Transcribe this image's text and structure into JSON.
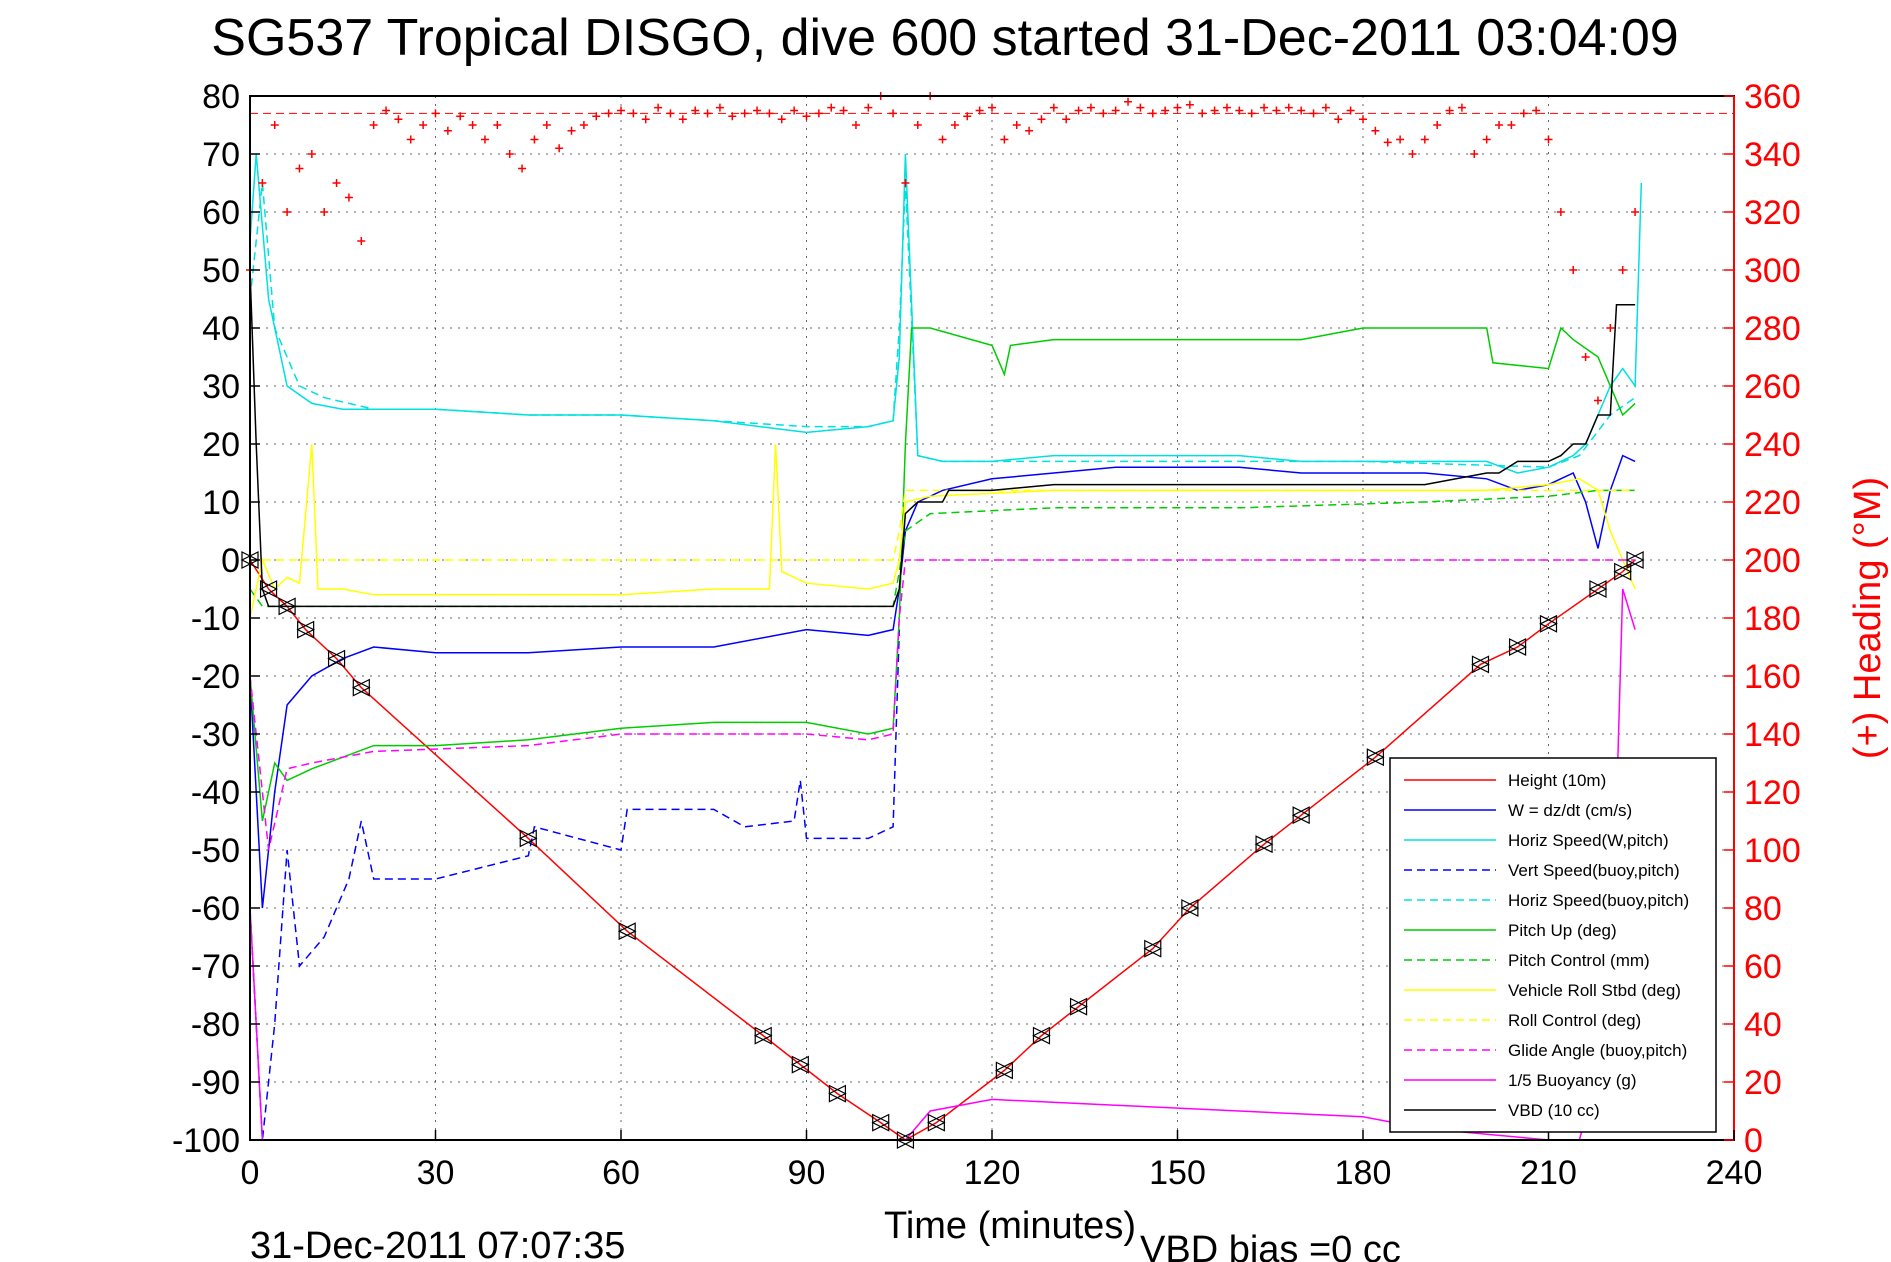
{
  "chart_data": {
    "type": "line",
    "title": "SG537 Tropical DISGO, dive 600 started 31-Dec-2011 03:04:09",
    "xlabel": "Time (minutes)",
    "ylabel_right": "(+) Heading (°M)",
    "footer_left": "31-Dec-2011 07:07:35",
    "footer_right": "VBD bias =0 cc",
    "xlim": [
      0,
      240
    ],
    "ylim": [
      -100,
      80
    ],
    "ylim_right": [
      0,
      360
    ],
    "grid": true,
    "legend_position": "bottom-right",
    "x_ticks": [
      "0",
      "30",
      "60",
      "90",
      "120",
      "150",
      "180",
      "210",
      "240"
    ],
    "y_ticks": [
      "80",
      "70",
      "60",
      "50",
      "40",
      "30",
      "20",
      "10",
      "0",
      "-10",
      "-20",
      "-30",
      "-40",
      "-50",
      "-60",
      "-70",
      "-80",
      "-90",
      "-100"
    ],
    "y_right_ticks": [
      "360",
      "340",
      "320",
      "300",
      "280",
      "260",
      "240",
      "220",
      "200",
      "180",
      "160",
      "140",
      "120",
      "100",
      "80",
      "60",
      "40",
      "20",
      "0"
    ],
    "series": [
      {
        "name": "Height (10m)",
        "color": "#ff0000",
        "dash": "solid",
        "x": [
          0,
          3,
          6,
          9,
          14,
          18,
          45,
          61,
          83,
          89,
          95,
          102,
          106,
          111,
          122,
          128,
          134,
          146,
          152,
          164,
          170,
          182,
          199,
          205,
          210,
          218,
          222,
          224
        ],
        "y": [
          0,
          -5,
          -8,
          -12,
          -17,
          -22,
          -48,
          -64,
          -82,
          -87,
          -92,
          -97,
          -100,
          -97,
          -88,
          -82,
          -77,
          -67,
          -60,
          -49,
          -44,
          -34,
          -18,
          -15,
          -11,
          -5,
          -2,
          0
        ]
      },
      {
        "name": "W = dz/dt (cm/s)",
        "color": "#0000ff",
        "dash": "solid",
        "x": [
          0,
          2,
          4,
          6,
          10,
          15,
          20,
          30,
          45,
          60,
          75,
          90,
          100,
          104,
          105,
          106,
          108,
          112,
          120,
          130,
          140,
          150,
          160,
          170,
          180,
          190,
          200,
          205,
          210,
          214,
          216,
          218,
          220,
          222,
          224
        ],
        "y": [
          -20,
          -60,
          -40,
          -25,
          -20,
          -17,
          -15,
          -16,
          -16,
          -15,
          -15,
          -12,
          -13,
          -12,
          -5,
          5,
          10,
          12,
          14,
          15,
          16,
          16,
          16,
          15,
          15,
          15,
          14,
          12,
          13,
          15,
          10,
          2,
          12,
          18,
          17
        ]
      },
      {
        "name": "Horiz Speed(W,pitch)",
        "color": "#00e0e0",
        "dash": "solid",
        "x": [
          0,
          1,
          3,
          6,
          10,
          15,
          20,
          30,
          45,
          60,
          75,
          90,
          100,
          104,
          105,
          106,
          108,
          112,
          120,
          130,
          140,
          150,
          160,
          170,
          180,
          190,
          200,
          205,
          210,
          214,
          216,
          218,
          220,
          222,
          224,
          225
        ],
        "y": [
          55,
          70,
          45,
          30,
          27,
          26,
          26,
          26,
          25,
          25,
          24,
          22,
          23,
          24,
          35,
          70,
          18,
          17,
          17,
          18,
          18,
          18,
          18,
          17,
          17,
          17,
          17,
          15,
          16,
          18,
          20,
          25,
          30,
          33,
          30,
          65
        ]
      },
      {
        "name": "Vert Speed(buoy,pitch)",
        "color": "#0000ff",
        "dash": "dashed",
        "x": [
          0,
          2,
          4,
          6,
          8,
          12,
          16,
          18,
          20,
          30,
          45,
          46,
          60,
          61,
          75,
          80,
          88,
          89,
          90,
          100,
          104,
          105
        ],
        "y": [
          -60,
          -100,
          -80,
          -50,
          -70,
          -65,
          -55,
          -45,
          -55,
          -55,
          -51,
          -46,
          -50,
          -43,
          -43,
          -46,
          -45,
          -38,
          -48,
          -48,
          -46,
          -12
        ]
      },
      {
        "name": "Horiz Speed(buoy,pitch)",
        "color": "#00e0e0",
        "dash": "dashed",
        "x": [
          0,
          2,
          4,
          8,
          12,
          16,
          20,
          30,
          45,
          60,
          75,
          90,
          100,
          104,
          105,
          106,
          108,
          112,
          120,
          150,
          180,
          210,
          215,
          220,
          224
        ],
        "y": [
          45,
          65,
          40,
          30,
          28,
          27,
          26,
          26,
          25,
          25,
          24,
          23,
          23,
          24,
          40,
          65,
          18,
          17,
          17,
          17,
          17,
          16,
          18,
          25,
          28
        ]
      },
      {
        "name": "Pitch Up (deg)",
        "color": "#00cc00",
        "dash": "solid",
        "x": [
          0,
          2,
          4,
          6,
          10,
          15,
          20,
          30,
          45,
          60,
          75,
          90,
          100,
          104,
          105,
          106,
          107,
          110,
          120,
          122,
          123,
          130,
          140,
          150,
          160,
          170,
          180,
          200,
          201,
          210,
          212,
          214,
          218,
          222,
          224
        ],
        "y": [
          -20,
          -45,
          -35,
          -38,
          -36,
          -34,
          -32,
          -32,
          -31,
          -29,
          -28,
          -28,
          -30,
          -29,
          -10,
          20,
          40,
          40,
          37,
          32,
          37,
          38,
          38,
          38,
          38,
          38,
          40,
          40,
          34,
          33,
          40,
          38,
          35,
          25,
          27
        ]
      },
      {
        "name": "Pitch Control (mm)",
        "color": "#00cc00",
        "dash": "dashed",
        "x": [
          0,
          2,
          5,
          104,
          105,
          106,
          110,
          130,
          160,
          190,
          210,
          218,
          224
        ],
        "y": [
          -5,
          -8,
          -8,
          -8,
          -2,
          5,
          8,
          9,
          9,
          10,
          11,
          12,
          12
        ]
      },
      {
        "name": "Vehicle Roll Stbd (deg)",
        "color": "#ffff00",
        "dash": "solid",
        "x": [
          0,
          2,
          4,
          6,
          8,
          10,
          11,
          15,
          20,
          30,
          45,
          60,
          75,
          84,
          85,
          86,
          90,
          100,
          104,
          105,
          106,
          110,
          130,
          150,
          170,
          190,
          200,
          210,
          215,
          218,
          220,
          222,
          224
        ],
        "y": [
          -10,
          0,
          -5,
          -3,
          -4,
          20,
          -5,
          -5,
          -6,
          -6,
          -6,
          -6,
          -5,
          -5,
          20,
          -2,
          -4,
          -5,
          -4,
          0,
          10,
          11,
          12,
          12,
          12,
          12,
          12,
          13,
          14,
          12,
          5,
          0,
          -5
        ]
      },
      {
        "name": "Roll Control (deg)",
        "color": "#ffff00",
        "dash": "dashed",
        "x": [
          0,
          5,
          104,
          105,
          106,
          110,
          224
        ],
        "y": [
          0,
          0,
          0,
          5,
          12,
          12,
          12
        ]
      },
      {
        "name": "Glide Angle (buoy,pitch)",
        "color": "#ff00ff",
        "dash": "dashed",
        "x": [
          0,
          3,
          6,
          10,
          20,
          45,
          60,
          90,
          100,
          104,
          105,
          106,
          224
        ],
        "y": [
          -20,
          -50,
          -36,
          -35,
          -33,
          -32,
          -30,
          -30,
          -31,
          -30,
          -10,
          0,
          0
        ]
      },
      {
        "name": "1/5 Buoyancy (g)",
        "color": "#ff00ff",
        "dash": "solid",
        "x": [
          0,
          2,
          5,
          106,
          110,
          120,
          140,
          160,
          180,
          190,
          200,
          210,
          215,
          220,
          222,
          224
        ],
        "y": [
          -60,
          -100,
          -100,
          -100,
          -95,
          -93,
          -94,
          -95,
          -96,
          -98,
          -99,
          -100,
          -100,
          -80,
          -5,
          -12
        ]
      },
      {
        "name": "VBD (10 cc)",
        "color": "#000000",
        "dash": "solid",
        "x": [
          0,
          1,
          2,
          3,
          8,
          15,
          30,
          60,
          90,
          104,
          105,
          106,
          108,
          112,
          113,
          120,
          130,
          150,
          170,
          180,
          190,
          200,
          202,
          205,
          210,
          212,
          214,
          216,
          218,
          220,
          221,
          224
        ],
        "y": [
          50,
          20,
          -5,
          -8,
          -8,
          -8,
          -8,
          -8,
          -8,
          -8,
          -5,
          8,
          10,
          10,
          12,
          12,
          13,
          13,
          13,
          13,
          13,
          15,
          15,
          17,
          17,
          18,
          20,
          20,
          25,
          25,
          44,
          44
        ]
      }
    ],
    "triangle_markers": {
      "x": [
        0,
        3,
        6,
        9,
        14,
        18,
        45,
        61,
        83,
        89,
        95,
        102,
        106,
        111,
        122,
        128,
        134,
        146,
        152,
        164,
        170,
        182,
        199,
        205,
        210,
        218,
        222,
        224
      ],
      "y": [
        0,
        -5,
        -8,
        -12,
        -17,
        -22,
        -48,
        -64,
        -82,
        -87,
        -92,
        -97,
        -100,
        -97,
        -88,
        -82,
        -77,
        -67,
        -60,
        -49,
        -44,
        -34,
        -18,
        -15,
        -11,
        -5,
        -2,
        0
      ]
    },
    "heading_samples": {
      "name": "(+) Heading",
      "color": "#ff0000",
      "marker": "+",
      "reference_line": 354,
      "x": [
        0,
        2,
        4,
        6,
        8,
        10,
        12,
        14,
        16,
        18,
        20,
        22,
        24,
        26,
        28,
        30,
        32,
        34,
        36,
        38,
        40,
        42,
        44,
        46,
        48,
        50,
        52,
        54,
        56,
        58,
        60,
        62,
        64,
        66,
        68,
        70,
        72,
        74,
        76,
        78,
        80,
        82,
        84,
        86,
        88,
        90,
        92,
        94,
        96,
        98,
        100,
        102,
        104,
        106,
        108,
        110,
        112,
        114,
        116,
        118,
        120,
        122,
        124,
        126,
        128,
        130,
        132,
        134,
        136,
        138,
        140,
        142,
        144,
        146,
        148,
        150,
        152,
        154,
        156,
        158,
        160,
        162,
        164,
        166,
        168,
        170,
        172,
        174,
        176,
        178,
        180,
        182,
        184,
        186,
        188,
        190,
        192,
        194,
        196,
        198,
        200,
        202,
        204,
        206,
        208,
        210,
        212,
        214,
        216,
        218,
        220,
        222,
        224
      ],
      "y": [
        300,
        330,
        350,
        320,
        335,
        340,
        320,
        330,
        325,
        310,
        350,
        355,
        352,
        345,
        350,
        354,
        348,
        353,
        350,
        345,
        350,
        340,
        335,
        345,
        350,
        342,
        348,
        350,
        353,
        354,
        355,
        354,
        352,
        356,
        354,
        352,
        355,
        354,
        356,
        353,
        354,
        355,
        354,
        352,
        355,
        353,
        354,
        356,
        355,
        350,
        356,
        360,
        354,
        330,
        350,
        360,
        345,
        350,
        353,
        355,
        356,
        345,
        350,
        348,
        352,
        356,
        352,
        355,
        356,
        354,
        355,
        358,
        356,
        354,
        355,
        356,
        357,
        354,
        355,
        356,
        355,
        354,
        356,
        355,
        356,
        355,
        354,
        356,
        352,
        355,
        352,
        348,
        344,
        345,
        340,
        345,
        350,
        355,
        356,
        340,
        345,
        350,
        350,
        354,
        355,
        345,
        320,
        300,
        270,
        255,
        280,
        300,
        320
      ]
    }
  }
}
